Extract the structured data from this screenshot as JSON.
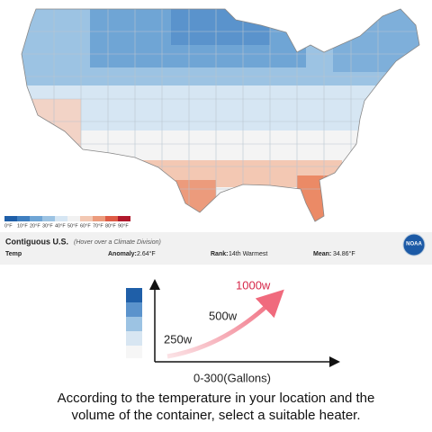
{
  "map": {
    "legend": [
      "0°F",
      "10°F",
      "20°F",
      "30°F",
      "40°F",
      "50°F",
      "60°F",
      "70°F",
      "80°F",
      "90°F"
    ]
  },
  "info_bar": {
    "title": "Contiguous U.S.",
    "hint": "(Hover over a Climate Division)",
    "variable": "Temp",
    "anomaly_label": "Anomaly:",
    "anomaly": "2.64°F",
    "rank_label": "Rank:",
    "rank": "14th Warmest",
    "mean_label": "Mean:",
    "mean": "34.86°F"
  },
  "logo": "NOAA",
  "diagram": {
    "levels": [
      "250w",
      "500w",
      "1000w"
    ],
    "x_axis": "0-300(Gallons)"
  },
  "caption": [
    "According to the temperature in your location and the",
    "volume of the container, select a suitable heater."
  ]
}
